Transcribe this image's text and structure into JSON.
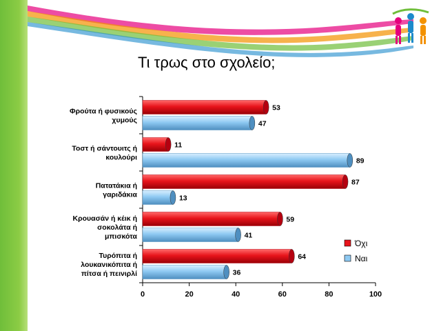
{
  "slide": {
    "title": "Τι τρως στο σχολείο;"
  },
  "chart_data": {
    "type": "bar",
    "orientation": "horizontal",
    "title": "",
    "categories": [
      [
        "Φρούτα ή φυσικούς",
        "χυμούς"
      ],
      [
        "Τοστ ή σάντουιτς ή",
        "κουλούρι"
      ],
      [
        "Πατατάκια ή",
        "γαριδάκια"
      ],
      [
        "Κρουασάν ή κέικ ή",
        "σοκολάτα ή",
        "μπισκότα"
      ],
      [
        "Τυρόπιτα ή",
        "λουκανικόπιτα ή",
        "πίτσα ή πεινιρλί"
      ]
    ],
    "series": [
      {
        "name": "Όχι",
        "values": [
          53,
          11,
          87,
          59,
          64
        ],
        "color": "#e8141b"
      },
      {
        "name": "Ναι",
        "values": [
          47,
          89,
          13,
          41,
          36
        ],
        "color": "#8ec9f2"
      }
    ],
    "xlim": [
      0,
      100
    ],
    "xticks": [
      0,
      20,
      40,
      60,
      80,
      100
    ],
    "grid": false,
    "legend": "right"
  }
}
